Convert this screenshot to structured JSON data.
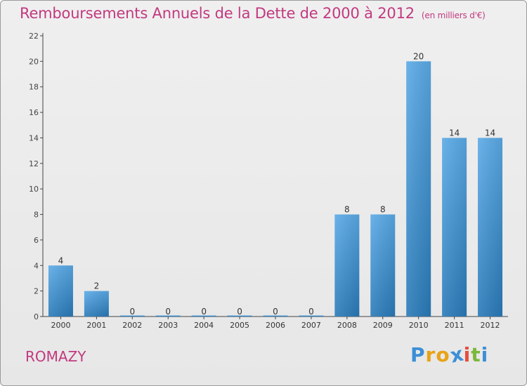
{
  "header": {
    "title": "Remboursements Annuels de la Dette de 2000 à 2012",
    "subtitle": "(en milliers d'€)"
  },
  "footer": {
    "commune": "ROMAZY",
    "logo_text": "Proxiti",
    "logo_colors": [
      "#3d8fd6",
      "#e8a317",
      "#e8a317",
      "#3d8fd6",
      "#e84c3d",
      "#7ab83a",
      "#3d8fd6"
    ]
  },
  "colors": {
    "title": "#c2397f",
    "bar_top": "#5aaae6",
    "bar_bottom": "#2a7ab8",
    "grid": "#c8c8c8"
  },
  "chart_data": {
    "type": "bar",
    "title": "Remboursements Annuels de la Dette de 2000 à 2012",
    "subtitle": "(en milliers d'€)",
    "categories": [
      "2000",
      "2001",
      "2002",
      "2003",
      "2004",
      "2005",
      "2006",
      "2007",
      "2008",
      "2009",
      "2010",
      "2011",
      "2012"
    ],
    "values": [
      4,
      2,
      0,
      0,
      0,
      0,
      0,
      0,
      8,
      8,
      20,
      14,
      14
    ],
    "data_labels": [
      "4",
      "2",
      "0",
      "0",
      "0",
      "0",
      "0",
      "0",
      "8",
      "8",
      "20",
      "14",
      "14"
    ],
    "ylim": [
      0,
      22
    ],
    "yticks": [
      0,
      2,
      4,
      6,
      8,
      10,
      12,
      14,
      16,
      18,
      20,
      22
    ],
    "grid": false,
    "xlabel": "",
    "ylabel": ""
  }
}
